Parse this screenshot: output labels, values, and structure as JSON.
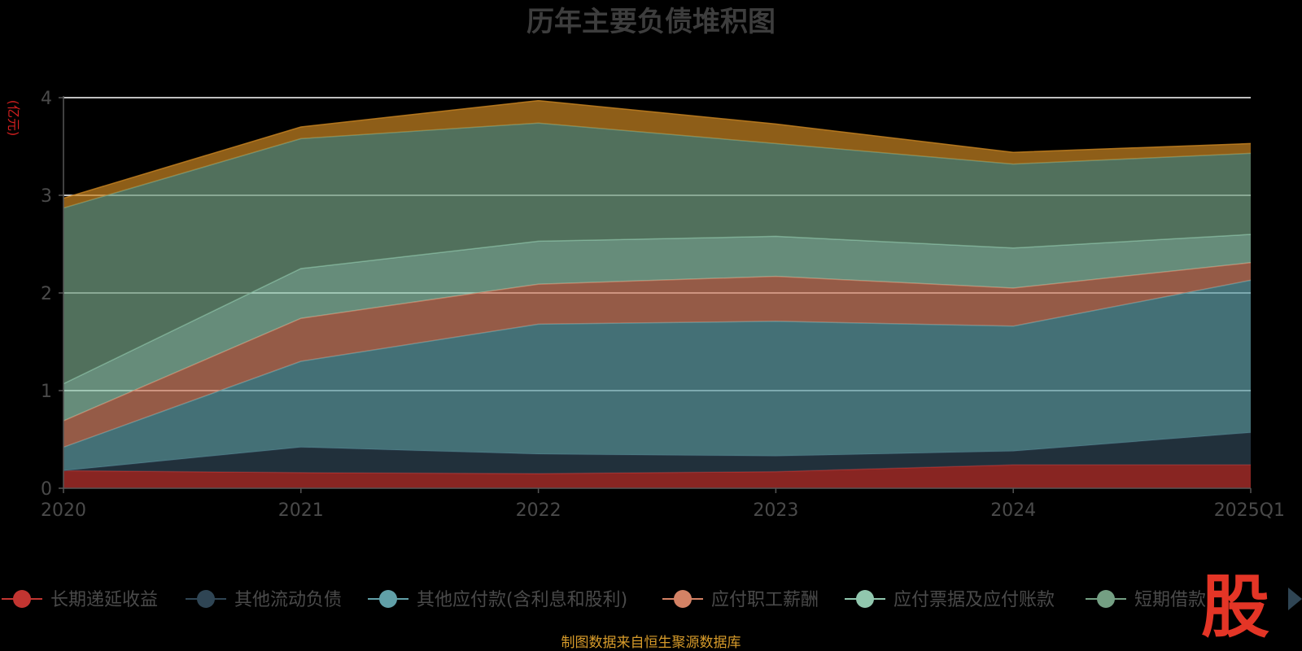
{
  "chart_data": {
    "type": "area",
    "stacked": true,
    "title": "历年主要负债堆积图",
    "unit": "(亿元)",
    "categories": [
      "2020",
      "2021",
      "2022",
      "2023",
      "2024",
      "2025Q1"
    ],
    "ylim": [
      0,
      4
    ],
    "yticks": [
      "0",
      "1",
      "2",
      "3",
      "4"
    ],
    "grid": true,
    "legend_position": "bottom",
    "series": [
      {
        "name": "长期递延收益",
        "color": "#c23531",
        "values": [
          0.18,
          0.16,
          0.15,
          0.17,
          0.24,
          0.24
        ]
      },
      {
        "name": "其他流动负债",
        "color": "#2f4554",
        "values": [
          0.0,
          0.26,
          0.2,
          0.16,
          0.14,
          0.33
        ]
      },
      {
        "name": "其他应付款(含利息和股利)",
        "color": "#61a0a8",
        "values": [
          0.24,
          0.88,
          1.33,
          1.38,
          1.28,
          1.56
        ]
      },
      {
        "name": "应付职工薪酬",
        "color": "#d48265",
        "values": [
          0.27,
          0.44,
          0.41,
          0.46,
          0.39,
          0.18
        ]
      },
      {
        "name": "应付票据及应付账款",
        "color": "#91c7ae",
        "values": [
          0.38,
          0.51,
          0.44,
          0.41,
          0.41,
          0.29
        ]
      },
      {
        "name": "短期借款",
        "color": "#749f83",
        "values": [
          1.8,
          1.33,
          1.21,
          0.95,
          0.86,
          0.83
        ]
      },
      {
        "name": "",
        "color": "#ca8622",
        "values": [
          0.1,
          0.12,
          0.23,
          0.2,
          0.12,
          0.1
        ]
      }
    ]
  },
  "footer": {
    "source": "制图数据来自恒生聚源数据库"
  },
  "logo": {
    "text": "股"
  },
  "legend_nav": {
    "icon": "triangle-right-icon"
  }
}
